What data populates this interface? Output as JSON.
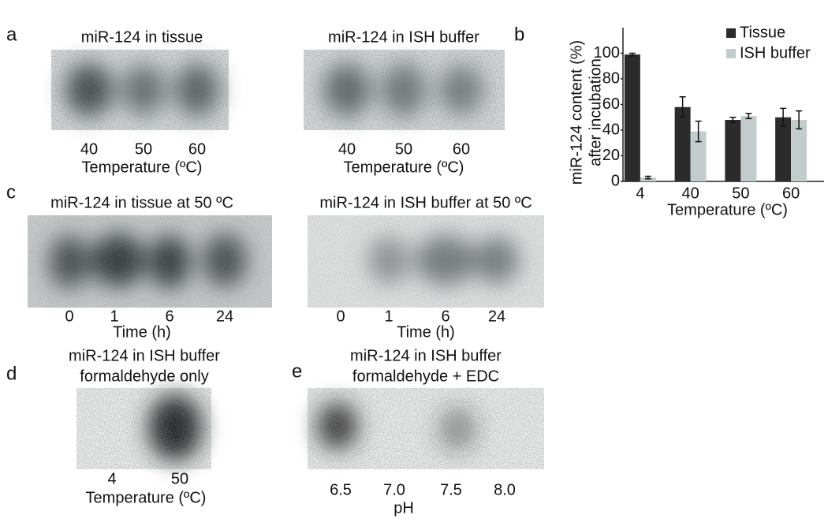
{
  "panels": {
    "a": {
      "letter": "a",
      "left": {
        "title": "miR-124 in tissue",
        "labels": [
          "40",
          "50",
          "60"
        ],
        "axis_label": "Temperature  (ºC)"
      },
      "right": {
        "title": "miR-124 in ISH buffer",
        "labels": [
          "40",
          "50",
          "60"
        ],
        "axis_label": "Temperature  (ºC)"
      }
    },
    "b": {
      "letter": "b"
    },
    "c": {
      "letter": "c",
      "left": {
        "title": "miR-124 in tissue at 50 ºC",
        "labels": [
          "0",
          "1",
          "6",
          "24"
        ],
        "axis_label": "Time (h)"
      },
      "right": {
        "title": "miR-124 in ISH buffer at 50 ºC",
        "labels": [
          "0",
          "1",
          "6",
          "24"
        ],
        "axis_label": "Time (h)"
      }
    },
    "d": {
      "letter": "d",
      "title": [
        "miR-124 in ISH buffer",
        "formaldehyde only"
      ],
      "labels": [
        "4",
        "50"
      ],
      "axis_label": "Temperature  (ºC)"
    },
    "e": {
      "letter": "e",
      "title": [
        "miR-124 in ISH buffer",
        "formaldehyde + EDC"
      ],
      "labels": [
        "6.5",
        "7.0",
        "7.5",
        "8.0"
      ],
      "axis_label": "pH"
    }
  },
  "chart_data": {
    "type": "bar",
    "ylabel": [
      "miR-124 content (%)",
      "after incubation"
    ],
    "xlabel": "Temperature  (ºC)",
    "categories": [
      "4",
      "40",
      "50",
      "60"
    ],
    "series": [
      {
        "name": "Tissue",
        "color": "#2b2b2b",
        "values": [
          99,
          58,
          48,
          50
        ],
        "errors": [
          1,
          8,
          2,
          7
        ]
      },
      {
        "name": "ISH buffer",
        "color": "#c3cccc",
        "values": [
          3,
          39,
          51,
          48
        ],
        "errors": [
          1,
          8,
          2,
          7
        ]
      }
    ],
    "ylim": [
      0,
      120
    ],
    "yticks": [
      0,
      20,
      40,
      60,
      80,
      100
    ]
  }
}
